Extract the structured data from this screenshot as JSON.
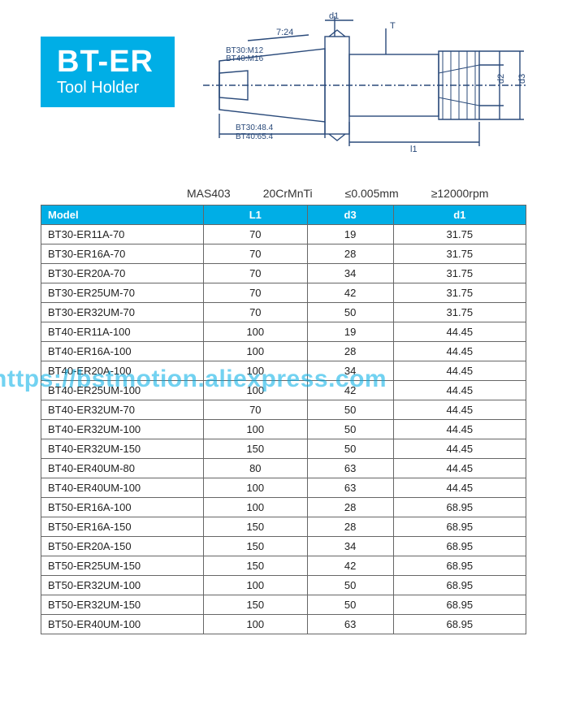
{
  "title": {
    "main": "BT-ER",
    "sub": "Tool Holder",
    "badge_bg": "#00aee6",
    "badge_fg": "#ffffff"
  },
  "diagram": {
    "stroke": "#2a4a7a",
    "labels": {
      "taper": "7:24",
      "thread1": "BT30:M12",
      "thread2": "BT40:M16",
      "len1": "BT30:48.4",
      "len2": "BT40:65.4",
      "d1": "d1",
      "d2": "d2",
      "d3": "d3",
      "T": "T",
      "l1": "l1"
    }
  },
  "specs": {
    "s1": "MAS403",
    "s2": "20CrMnTi",
    "s3": "≤0.005mm",
    "s4": "≥12000rpm"
  },
  "table": {
    "header_bg": "#00aee6",
    "header_fg": "#ffffff",
    "border": "#666666",
    "columns": [
      "Model",
      "L1",
      "d3",
      "d1"
    ],
    "rows": [
      [
        "BT30-ER11A-70",
        "70",
        "19",
        "31.75"
      ],
      [
        "BT30-ER16A-70",
        "70",
        "28",
        "31.75"
      ],
      [
        "BT30-ER20A-70",
        "70",
        "34",
        "31.75"
      ],
      [
        "BT30-ER25UM-70",
        "70",
        "42",
        "31.75"
      ],
      [
        "BT30-ER32UM-70",
        "70",
        "50",
        "31.75"
      ],
      [
        "BT40-ER11A-100",
        "100",
        "19",
        "44.45"
      ],
      [
        "BT40-ER16A-100",
        "100",
        "28",
        "44.45"
      ],
      [
        "BT40-ER20A-100",
        "100",
        "34",
        "44.45"
      ],
      [
        "BT40-ER25UM-100",
        "100",
        "42",
        "44.45"
      ],
      [
        "BT40-ER32UM-70",
        "70",
        "50",
        "44.45"
      ],
      [
        "BT40-ER32UM-100",
        "100",
        "50",
        "44.45"
      ],
      [
        "BT40-ER32UM-150",
        "150",
        "50",
        "44.45"
      ],
      [
        "BT40-ER40UM-80",
        "80",
        "63",
        "44.45"
      ],
      [
        "BT40-ER40UM-100",
        "100",
        "63",
        "44.45"
      ],
      [
        "BT50-ER16A-100",
        "100",
        "28",
        "68.95"
      ],
      [
        "BT50-ER16A-150",
        "150",
        "28",
        "68.95"
      ],
      [
        "BT50-ER20A-150",
        "150",
        "34",
        "68.95"
      ],
      [
        "BT50-ER25UM-150",
        "150",
        "42",
        "68.95"
      ],
      [
        "BT50-ER32UM-100",
        "100",
        "50",
        "68.95"
      ],
      [
        "BT50-ER32UM-150",
        "150",
        "50",
        "68.95"
      ],
      [
        "BT50-ER40UM-100",
        "100",
        "63",
        "68.95"
      ]
    ]
  },
  "watermark": {
    "text": "https://bstmotion.aliexpress.com",
    "color": "#00aee6"
  }
}
